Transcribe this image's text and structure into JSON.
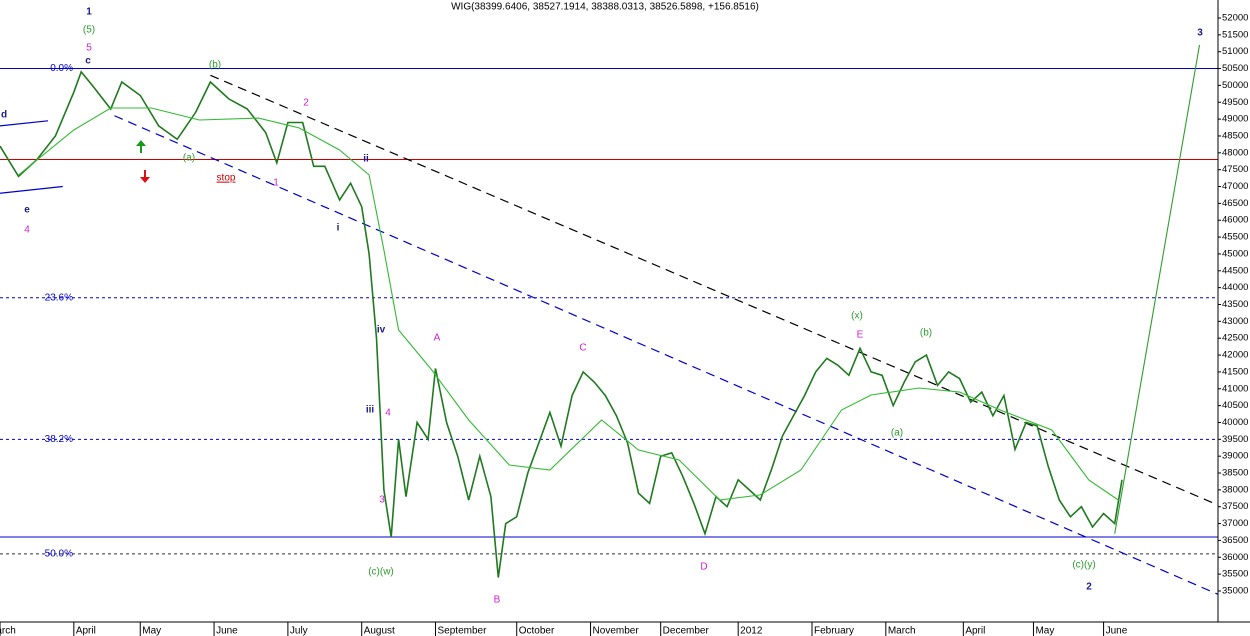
{
  "chart_data": {
    "type": "line",
    "title": "WIG(38399.6406, 38527.1914, 38388.0313, 38526.5898, +156.8516)",
    "xlim": [
      0,
      330
    ],
    "ylim": [
      34080,
      52534
    ],
    "yticks": [
      35000,
      35500,
      36000,
      36500,
      37000,
      37500,
      38000,
      38500,
      39000,
      39500,
      40000,
      40500,
      41000,
      41500,
      42000,
      42500,
      43000,
      43500,
      44000,
      44500,
      45000,
      45500,
      46000,
      46500,
      47000,
      47500,
      48000,
      48500,
      49000,
      49500,
      50000,
      50500,
      51000,
      51500,
      52000
    ],
    "xticks": [
      {
        "value": 0,
        "label": "March"
      },
      {
        "value": 20,
        "label": "April"
      },
      {
        "value": 38,
        "label": "May"
      },
      {
        "value": 58,
        "label": "June"
      },
      {
        "value": 78,
        "label": "July"
      },
      {
        "value": 98,
        "label": "August"
      },
      {
        "value": 118,
        "label": "September"
      },
      {
        "value": 140,
        "label": "October"
      },
      {
        "value": 160,
        "label": "November"
      },
      {
        "value": 179,
        "label": "December"
      },
      {
        "value": 200,
        "label": "2012"
      },
      {
        "value": 220,
        "label": "February"
      },
      {
        "value": 240,
        "label": "March"
      },
      {
        "value": 261,
        "label": "April"
      },
      {
        "value": 280,
        "label": "May"
      },
      {
        "value": 299,
        "label": "June"
      }
    ],
    "series": [
      {
        "name": "WIG",
        "color": "#1f7a1f",
        "x": [
          0,
          5,
          10,
          15,
          20,
          22,
          25,
          30,
          33,
          38,
          43,
          48,
          53,
          57,
          62,
          67,
          72,
          75,
          78,
          82,
          85,
          88,
          92,
          95,
          98,
          100,
          102,
          104,
          106,
          108,
          110,
          113,
          116,
          118,
          121,
          124,
          127,
          130,
          133,
          135,
          137,
          140,
          143,
          146,
          149,
          152,
          155,
          158,
          161,
          164,
          167,
          170,
          173,
          176,
          179,
          182,
          185,
          188,
          191,
          194,
          197,
          200,
          203,
          206,
          209,
          212,
          215,
          218,
          221,
          224,
          227,
          230,
          233,
          236,
          239,
          242,
          245,
          248,
          251,
          254,
          257,
          260,
          263,
          266,
          269,
          272,
          275,
          278,
          281,
          284,
          287,
          290,
          293,
          296,
          299,
          302,
          304
        ],
        "values": [
          48200,
          47300,
          47800,
          48500,
          49800,
          50400,
          50000,
          49300,
          50100,
          49700,
          48800,
          48400,
          49200,
          50100,
          49600,
          49300,
          48600,
          47700,
          48900,
          48900,
          47600,
          47600,
          46600,
          47100,
          46400,
          45000,
          42500,
          38000,
          36600,
          39500,
          37800,
          40000,
          39500,
          41600,
          40000,
          39000,
          37700,
          39000,
          37800,
          35400,
          37000,
          37200,
          38500,
          39400,
          40300,
          39300,
          40800,
          41500,
          41200,
          40800,
          40200,
          39400,
          37900,
          37600,
          39000,
          39100,
          38400,
          37600,
          36700,
          37800,
          37500,
          38300,
          38000,
          37700,
          38600,
          39600,
          40200,
          40800,
          41500,
          41900,
          41700,
          41400,
          42200,
          41500,
          41400,
          40500,
          41200,
          41800,
          42000,
          41100,
          41500,
          41300,
          40600,
          40900,
          40200,
          40800,
          39200,
          40000,
          39900,
          38700,
          37700,
          37200,
          37500,
          36900,
          37300,
          37000,
          38300
        ]
      },
      {
        "name": "MA",
        "color": "#33bb33",
        "x": [
          5,
          20,
          30,
          41,
          54,
          70,
          81,
          92,
          100,
          104,
          108,
          117,
          127,
          138,
          149,
          163,
          173,
          184,
          195,
          206,
          217,
          228,
          236,
          249,
          260,
          271,
          285,
          295,
          303
        ],
        "values": [
          47340,
          48677,
          49330,
          49330,
          48974,
          49030,
          48740,
          48084,
          47342,
          45117,
          42743,
          41556,
          40073,
          38737,
          38590,
          40073,
          39183,
          38886,
          37700,
          37850,
          38590,
          40370,
          40815,
          41022,
          40900,
          40370,
          39776,
          38293,
          37700
        ]
      },
      {
        "name": "projection",
        "color": "#2e9e2e",
        "x": [
          302,
          325
        ],
        "values": [
          36700,
          51200
        ]
      }
    ],
    "lines": [
      {
        "from": [
          57,
          50300
        ],
        "to": [
          330,
          37550
        ],
        "color": "#000000",
        "dashed": true
      },
      {
        "from": [
          31,
          49100
        ],
        "to": [
          330,
          34900
        ],
        "color": "#0000cc",
        "dashed": true
      },
      {
        "from": [
          0,
          48800
        ],
        "to": [
          13,
          48950
        ],
        "color": "#0000cc",
        "dashed": false
      },
      {
        "from": [
          0,
          46800
        ],
        "to": [
          17,
          47000
        ],
        "color": "#0000cc",
        "dashed": false
      }
    ],
    "levels": [
      {
        "value": 50500,
        "label": "0.0%",
        "color": "#0000cc",
        "dashed": false
      },
      {
        "value": 43700,
        "label": "23.6%",
        "color": "#0000cc",
        "dashed": true
      },
      {
        "value": 39500,
        "label": "38.2%",
        "color": "#0000cc",
        "dashed": true
      },
      {
        "value": 36100,
        "label": "50.0%",
        "color": "#333333",
        "dashed": true
      },
      {
        "value": 36600,
        "color": "#0000cc",
        "dashed": false
      },
      {
        "value": 47800,
        "color": "#cc0000",
        "dashed": false
      }
    ],
    "annotations": [
      {
        "text": "1",
        "color": "#1a1a8c"
      },
      {
        "text": "(5)",
        "color": "#2e9e2e"
      },
      {
        "text": "5",
        "color": "#d020d0"
      },
      {
        "text": "c",
        "color": "#1a1a8c"
      },
      {
        "text": "d",
        "color": "#1a1a8c"
      },
      {
        "text": "e",
        "color": "#1a1a8c"
      },
      {
        "text": "4",
        "color": "#d020d0"
      },
      {
        "text": "(a)",
        "color": "#2e9e2e"
      },
      {
        "text": "(b)",
        "color": "#2e9e2e"
      },
      {
        "text": "stop",
        "color": "#cc0000"
      },
      {
        "text": "1",
        "color": "#d020d0"
      },
      {
        "text": "2",
        "color": "#d020d0"
      },
      {
        "text": "ii",
        "color": "#1a1a8c"
      },
      {
        "text": "i",
        "color": "#1a1a8c"
      },
      {
        "text": "iv",
        "color": "#1a1a8c"
      },
      {
        "text": "iii",
        "color": "#1a1a8c"
      },
      {
        "text": "4",
        "color": "#d020d0"
      },
      {
        "text": "3",
        "color": "#d020d0"
      },
      {
        "text": "(c)(w)",
        "color": "#2e9e2e"
      },
      {
        "text": "A",
        "color": "#d020d0"
      },
      {
        "text": "B",
        "color": "#d020d0"
      },
      {
        "text": "C",
        "color": "#d020d0"
      },
      {
        "text": "D",
        "color": "#d020d0"
      },
      {
        "text": "(x)",
        "color": "#2e9e2e"
      },
      {
        "text": "E",
        "color": "#d020d0"
      },
      {
        "text": "(b)",
        "color": "#2e9e2e"
      },
      {
        "text": "(a)",
        "color": "#2e9e2e"
      },
      {
        "text": "(c)(y)",
        "color": "#2e9e2e"
      },
      {
        "text": "2",
        "color": "#1a1a8c"
      },
      {
        "text": "3",
        "color": "#1a1a8c"
      }
    ]
  }
}
